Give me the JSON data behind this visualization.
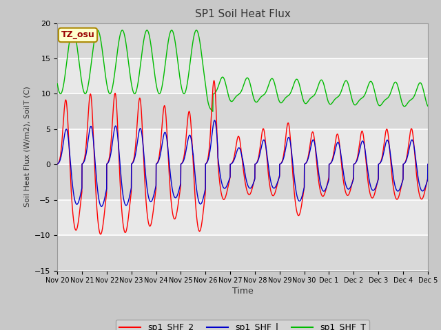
{
  "title": "SP1 Soil Heat Flux",
  "xlabel": "Time",
  "ylabel": "Soil Heat Flux (W/m2), SoilT (C)",
  "ylim": [
    -15,
    20
  ],
  "xlim_start": 0,
  "xlim_end": 15,
  "xtick_labels": [
    "Nov 20",
    "Nov 21",
    "Nov 22",
    "Nov 23",
    "Nov 24",
    "Nov 25",
    "Nov 26",
    "Nov 27",
    "Nov 28",
    "Nov 29",
    "Nov 30",
    "Dec 1",
    "Dec 2",
    "Dec 3",
    "Dec 4",
    "Dec 5"
  ],
  "color_shf2": "#FF0000",
  "color_shf1": "#0000CC",
  "color_shft": "#00BB00",
  "fig_bg": "#C8C8C8",
  "plot_bg": "#E0E0E0",
  "label_shf2": "sp1_SHF_2",
  "label_shf1": "sp1_SHF_l",
  "label_shft": "sp1_SHF_T",
  "tz_label": "TZ_osu",
  "hgrid_color": "#FFFFFF"
}
